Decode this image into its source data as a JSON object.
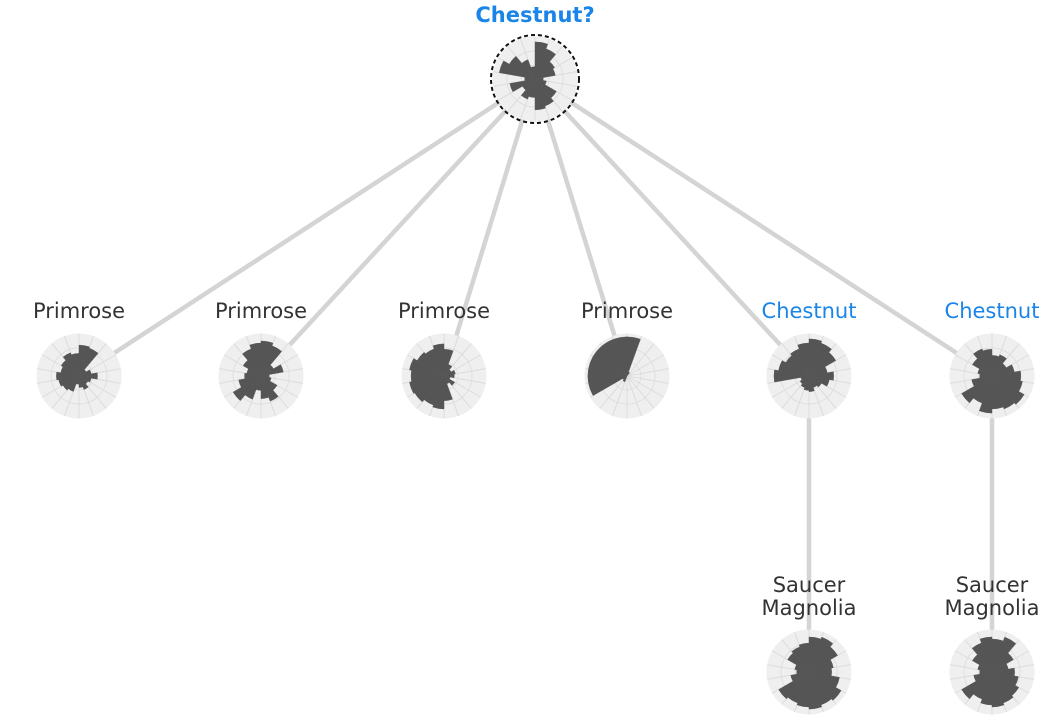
{
  "root": {
    "id": "root",
    "label": "Chestnut?",
    "highlight": true,
    "petals": [
      0.9,
      0.78,
      0.55,
      0.5,
      0.2,
      0.28,
      0.6,
      0.7,
      0.75,
      0.45,
      0.52,
      0.35,
      0.62,
      0.25,
      0.88,
      0.72,
      0.5,
      0.3
    ]
  },
  "nodes": [
    {
      "id": "n1",
      "label": "Primrose",
      "highlight": false,
      "parent": "root",
      "petals": [
        0.75,
        0.72,
        0.2,
        0.3,
        0.45,
        0.3,
        0.25,
        0.35,
        0.28,
        0.2,
        0.4,
        0.45,
        0.5,
        0.55,
        0.45,
        0.5,
        0.6,
        0.55
      ]
    },
    {
      "id": "n2",
      "label": "Primrose",
      "highlight": false,
      "parent": "root",
      "petals": [
        0.85,
        0.78,
        0.35,
        0.55,
        0.2,
        0.25,
        0.45,
        0.65,
        0.55,
        0.35,
        0.6,
        0.78,
        0.55,
        0.4,
        0.35,
        0.5,
        0.7,
        0.8
      ]
    },
    {
      "id": "n3",
      "label": "Primrose",
      "highlight": false,
      "parent": "root",
      "petals": [
        0.65,
        0.3,
        0.2,
        0.28,
        0.25,
        0.15,
        0.3,
        0.2,
        0.6,
        0.8,
        0.75,
        0.82,
        0.85,
        0.8,
        0.85,
        0.75,
        0.7,
        0.78
      ]
    },
    {
      "id": "n4",
      "label": "Primrose",
      "highlight": false,
      "parent": "root",
      "petals": [
        0.95,
        0.1,
        0.0,
        0.0,
        0.0,
        0.0,
        0.0,
        0.0,
        0.0,
        0.0,
        0.15,
        0.12,
        0.95,
        0.95,
        0.95,
        0.95,
        0.95,
        0.95
      ]
    },
    {
      "id": "n5",
      "label": "Chestnut",
      "highlight": true,
      "parent": "root",
      "petals": [
        0.9,
        0.85,
        0.75,
        0.45,
        0.6,
        0.5,
        0.35,
        0.3,
        0.38,
        0.35,
        0.3,
        0.25,
        0.2,
        0.85,
        0.75,
        0.65,
        0.7,
        0.8
      ]
    },
    {
      "id": "n6",
      "label": "Chestnut",
      "highlight": true,
      "parent": "root",
      "petals": [
        0.5,
        0.55,
        0.4,
        0.55,
        0.7,
        0.75,
        0.9,
        0.85,
        0.8,
        0.9,
        0.7,
        0.85,
        0.5,
        0.3,
        0.35,
        0.55,
        0.7,
        0.65
      ]
    },
    {
      "id": "n7",
      "label": "Saucer\nMagnolia",
      "highlight": false,
      "parent": "n5",
      "petals": [
        0.85,
        0.9,
        0.8,
        0.6,
        0.55,
        0.75,
        0.9,
        0.85,
        0.9,
        0.85,
        0.8,
        0.85,
        0.45,
        0.3,
        0.35,
        0.6,
        0.65,
        0.7
      ]
    },
    {
      "id": "n8",
      "label": "Saucer\nMagnolia",
      "highlight": false,
      "parent": "n6",
      "petals": [
        0.8,
        0.9,
        0.6,
        0.4,
        0.55,
        0.65,
        0.75,
        0.8,
        0.85,
        0.8,
        0.7,
        0.85,
        0.45,
        0.3,
        0.35,
        0.55,
        0.75,
        0.85
      ]
    }
  ]
}
